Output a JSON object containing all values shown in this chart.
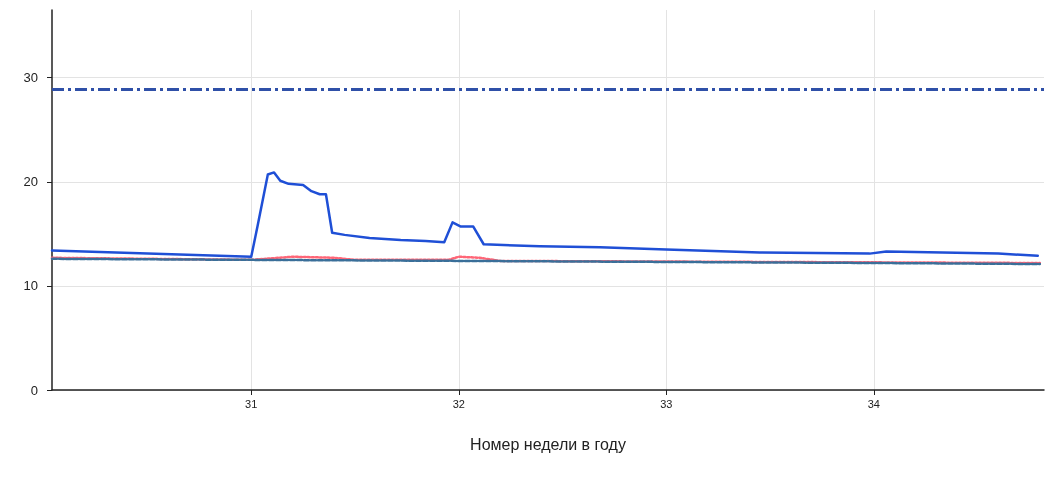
{
  "chart_data": {
    "type": "line",
    "xlabel": "Номер недели в году",
    "xlim": [
      30.04,
      34.82
    ],
    "xticks": [
      31,
      32,
      33,
      34
    ],
    "ylim": [
      0,
      36.5
    ],
    "yticks": [
      0,
      10,
      20,
      30
    ],
    "grid": true,
    "marker": "none",
    "series": [
      {
        "color": "#1f4fd6",
        "line_style": "solid",
        "x": [
          30.04,
          31.0,
          31.03,
          31.08,
          31.11,
          31.14,
          31.18,
          31.25,
          31.29,
          31.33,
          31.36,
          31.39,
          31.45,
          31.57,
          31.72,
          31.84,
          31.93,
          31.97,
          32.01,
          32.07,
          32.12,
          32.39,
          32.68,
          33.0,
          33.45,
          33.98,
          34.06,
          34.6,
          34.79
        ],
        "values": [
          13.4,
          12.8,
          15.7,
          20.7,
          20.9,
          20.1,
          19.8,
          19.7,
          19.1,
          18.8,
          18.8,
          15.1,
          14.9,
          14.6,
          14.4,
          14.3,
          14.2,
          16.1,
          15.7,
          15.7,
          14.0,
          13.8,
          13.7,
          13.5,
          13.2,
          13.1,
          13.3,
          13.1,
          12.9
        ]
      },
      {
        "color": "#ff6677",
        "line_style": "dotted",
        "x": [
          30.04,
          31.0,
          31.2,
          31.4,
          31.5,
          31.95,
          32.0,
          32.1,
          32.2,
          34.8
        ],
        "values": [
          12.7,
          12.5,
          12.8,
          12.7,
          12.5,
          12.5,
          12.8,
          12.7,
          12.4,
          12.2
        ]
      },
      {
        "color": "#3a6f99",
        "line_style": "dashed",
        "x": [
          30.04,
          31.0,
          32.0,
          33.0,
          34.0,
          34.8
        ],
        "values": [
          12.6,
          12.5,
          12.4,
          12.3,
          12.2,
          12.1
        ]
      }
    ],
    "ref_lines": [
      {
        "axis": "y",
        "value": 28.9,
        "color": "#2f50a8",
        "line_style": "dashed"
      }
    ]
  }
}
